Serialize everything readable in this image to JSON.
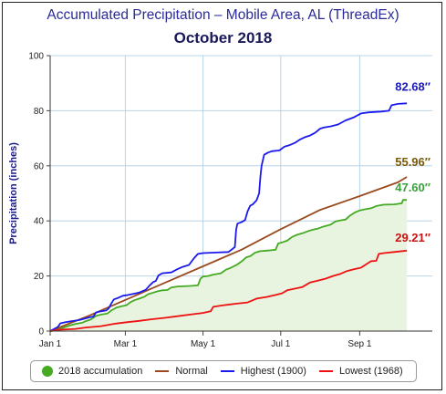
{
  "chart_data": {
    "type": "line",
    "title": "Accumulated Precipitation – Mobile Area, AL (ThreadEx)",
    "subtitle": "October 2018",
    "ylabel": "Precipitation (inches)",
    "xlabel": "",
    "xlim": [
      0,
      300
    ],
    "ylim": [
      0,
      100
    ],
    "yticks": [
      0,
      20,
      40,
      60,
      80,
      100
    ],
    "xticks": [
      {
        "label": "Jan 1",
        "day": 0
      },
      {
        "label": "Mar 1",
        "day": 59
      },
      {
        "label": "May 1",
        "day": 120
      },
      {
        "label": "Jul 1",
        "day": 181
      },
      {
        "label": "Sep 1",
        "day": 243
      }
    ],
    "grid": true,
    "legend_position": "bottom",
    "series": [
      {
        "name": "2018 accumulation",
        "color": "#44aa22",
        "fill": "#e8f4e0",
        "end_label": "47.60″",
        "end_label_color": "#3aa03a",
        "marker": "dot",
        "points": [
          [
            0,
            0
          ],
          [
            5,
            0.3
          ],
          [
            10,
            1.2
          ],
          [
            15,
            2.0
          ],
          [
            20,
            2.6
          ],
          [
            25,
            3.0
          ],
          [
            28,
            3.6
          ],
          [
            32,
            4.2
          ],
          [
            36,
            5.5
          ],
          [
            40,
            6.0
          ],
          [
            45,
            6.4
          ],
          [
            48,
            7.5
          ],
          [
            52,
            8.5
          ],
          [
            56,
            9.0
          ],
          [
            60,
            9.4
          ],
          [
            63,
            10.5
          ],
          [
            66,
            11.2
          ],
          [
            70,
            11.8
          ],
          [
            74,
            12.5
          ],
          [
            77,
            13.4
          ],
          [
            80,
            13.8
          ],
          [
            84,
            14.4
          ],
          [
            88,
            14.8
          ],
          [
            92,
            14.9
          ],
          [
            95,
            15.8
          ],
          [
            100,
            16.2
          ],
          [
            110,
            16.4
          ],
          [
            116,
            16.6
          ],
          [
            118,
            19.0
          ],
          [
            120,
            19.8
          ],
          [
            124,
            20.0
          ],
          [
            128,
            20.5
          ],
          [
            134,
            21.0
          ],
          [
            138,
            22.3
          ],
          [
            142,
            23.0
          ],
          [
            147,
            24.2
          ],
          [
            150,
            25.2
          ],
          [
            154,
            26.8
          ],
          [
            157,
            27.2
          ],
          [
            161,
            28.5
          ],
          [
            165,
            29.0
          ],
          [
            170,
            29.2
          ],
          [
            177,
            29.5
          ],
          [
            179,
            31.8
          ],
          [
            182,
            32.2
          ],
          [
            186,
            32.8
          ],
          [
            190,
            34.2
          ],
          [
            194,
            35.0
          ],
          [
            198,
            35.5
          ],
          [
            202,
            36.2
          ],
          [
            206,
            36.8
          ],
          [
            210,
            37.2
          ],
          [
            215,
            38.0
          ],
          [
            220,
            38.6
          ],
          [
            224,
            39.8
          ],
          [
            228,
            40.2
          ],
          [
            232,
            40.5
          ],
          [
            235,
            41.8
          ],
          [
            239,
            43.0
          ],
          [
            243,
            43.8
          ],
          [
            247,
            44.2
          ],
          [
            252,
            44.6
          ],
          [
            256,
            45.4
          ],
          [
            262,
            45.9
          ],
          [
            270,
            46.0
          ],
          [
            276,
            46.4
          ],
          [
            277,
            47.6
          ],
          [
            280,
            47.6
          ]
        ]
      },
      {
        "name": "Normal",
        "color": "#9a4a1e",
        "end_label": "55.96″",
        "end_label_color": "#7a5a0a",
        "marker": "line",
        "points": [
          [
            0,
            0
          ],
          [
            30,
            5.5
          ],
          [
            60,
            11.5
          ],
          [
            90,
            17.5
          ],
          [
            120,
            23.5
          ],
          [
            150,
            29.5
          ],
          [
            181,
            37.0
          ],
          [
            212,
            44.0
          ],
          [
            243,
            49.0
          ],
          [
            273,
            54.0
          ],
          [
            280,
            55.96
          ]
        ]
      },
      {
        "name": "Highest (1900)",
        "color": "#1a1aee",
        "end_label": "82.68″",
        "end_label_color": "#1a1ab8",
        "marker": "line",
        "points": [
          [
            0,
            0
          ],
          [
            6,
            1.5
          ],
          [
            8,
            2.8
          ],
          [
            12,
            3.2
          ],
          [
            17,
            3.6
          ],
          [
            23,
            4.0
          ],
          [
            27,
            4.5
          ],
          [
            31,
            5.0
          ],
          [
            34,
            5.3
          ],
          [
            36,
            6.8
          ],
          [
            40,
            7.2
          ],
          [
            44,
            7.5
          ],
          [
            46,
            8.2
          ],
          [
            48,
            10.0
          ],
          [
            50,
            11.5
          ],
          [
            53,
            12.0
          ],
          [
            57,
            12.8
          ],
          [
            60,
            13.0
          ],
          [
            65,
            13.5
          ],
          [
            70,
            14.0
          ],
          [
            75,
            15.0
          ],
          [
            78,
            16.5
          ],
          [
            81,
            17.8
          ],
          [
            83,
            18.2
          ],
          [
            85,
            20.2
          ],
          [
            88,
            21.0
          ],
          [
            95,
            21.3
          ],
          [
            100,
            22.5
          ],
          [
            104,
            23.3
          ],
          [
            109,
            24.0
          ],
          [
            113,
            26.5
          ],
          [
            116,
            28.0
          ],
          [
            120,
            28.3
          ],
          [
            130,
            28.5
          ],
          [
            140,
            28.7
          ],
          [
            145,
            30.5
          ],
          [
            146,
            36.8
          ],
          [
            147,
            39.0
          ],
          [
            150,
            39.5
          ],
          [
            153,
            40.3
          ],
          [
            155,
            43.5
          ],
          [
            157,
            45.5
          ],
          [
            159,
            46.0
          ],
          [
            162,
            47.5
          ],
          [
            164,
            50.0
          ],
          [
            165,
            56.0
          ],
          [
            166,
            60.0
          ],
          [
            168,
            64.0
          ],
          [
            171,
            64.8
          ],
          [
            174,
            65.3
          ],
          [
            180,
            65.6
          ],
          [
            184,
            67.0
          ],
          [
            188,
            67.5
          ],
          [
            192,
            68.3
          ],
          [
            196,
            69.5
          ],
          [
            200,
            70.4
          ],
          [
            204,
            71.0
          ],
          [
            208,
            72.0
          ],
          [
            212,
            73.5
          ],
          [
            215,
            73.9
          ],
          [
            220,
            74.3
          ],
          [
            226,
            75.0
          ],
          [
            232,
            76.5
          ],
          [
            238,
            77.5
          ],
          [
            244,
            79.0
          ],
          [
            250,
            79.4
          ],
          [
            260,
            79.7
          ],
          [
            266,
            80.0
          ],
          [
            268,
            82.0
          ],
          [
            273,
            82.5
          ],
          [
            280,
            82.68
          ]
        ]
      },
      {
        "name": "Lowest (1968)",
        "color": "#ee1111",
        "end_label": "29.21″",
        "end_label_color": "#cc1111",
        "marker": "line",
        "points": [
          [
            0,
            0
          ],
          [
            8,
            0.5
          ],
          [
            20,
            0.8
          ],
          [
            28,
            1.3
          ],
          [
            40,
            1.8
          ],
          [
            50,
            2.6
          ],
          [
            60,
            3.2
          ],
          [
            70,
            3.7
          ],
          [
            80,
            4.3
          ],
          [
            90,
            4.8
          ],
          [
            100,
            5.4
          ],
          [
            110,
            6.0
          ],
          [
            120,
            6.6
          ],
          [
            126,
            7.2
          ],
          [
            128,
            8.8
          ],
          [
            135,
            9.3
          ],
          [
            145,
            9.9
          ],
          [
            155,
            10.4
          ],
          [
            162,
            11.8
          ],
          [
            170,
            12.4
          ],
          [
            177,
            13.1
          ],
          [
            182,
            13.7
          ],
          [
            186,
            14.8
          ],
          [
            192,
            15.4
          ],
          [
            198,
            16.0
          ],
          [
            204,
            17.6
          ],
          [
            210,
            18.3
          ],
          [
            216,
            19.0
          ],
          [
            222,
            20.0
          ],
          [
            228,
            20.8
          ],
          [
            233,
            21.8
          ],
          [
            238,
            22.4
          ],
          [
            244,
            23.0
          ],
          [
            248,
            24.2
          ],
          [
            252,
            25.4
          ],
          [
            256,
            25.5
          ],
          [
            258,
            28.0
          ],
          [
            262,
            28.3
          ],
          [
            270,
            28.7
          ],
          [
            280,
            29.21
          ]
        ]
      }
    ]
  }
}
